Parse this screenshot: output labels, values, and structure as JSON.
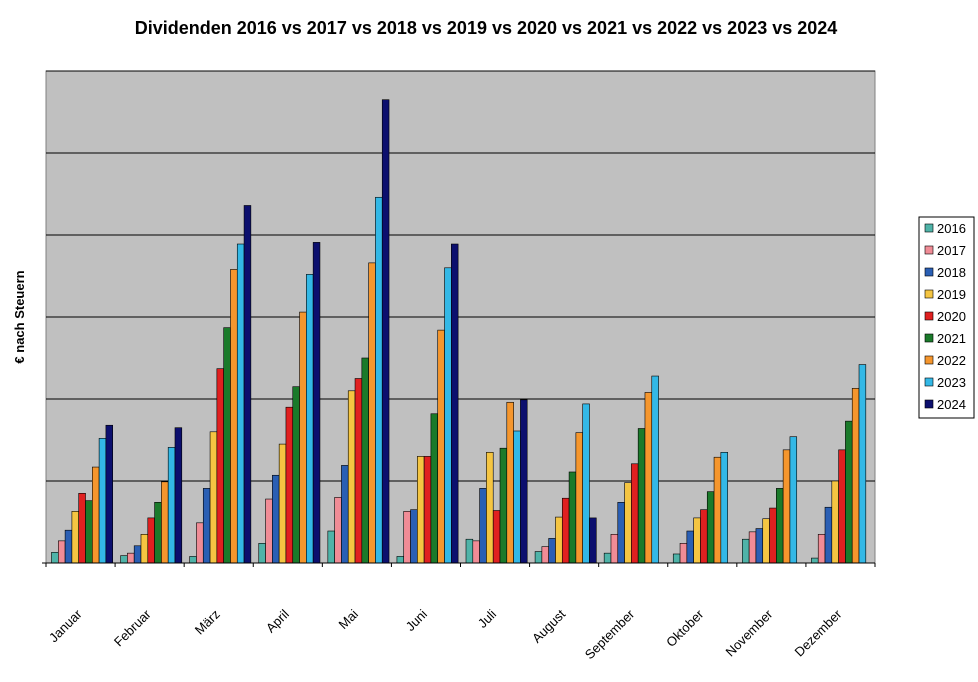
{
  "chart_data": {
    "type": "bar",
    "title": "Dividenden 2016 vs 2017 vs 2018 vs 2019 vs 2020 vs 2021 vs 2022 vs 2023 vs 2024",
    "xlabel": "",
    "ylabel": "€ nach Steuern",
    "ylim": [
      0,
      60
    ],
    "gridlines": [
      10,
      20,
      30,
      40,
      50,
      60
    ],
    "y_tick_labels_shown": false,
    "grid": true,
    "legend_position": "right",
    "plot_background": "#c0c0c0",
    "categories": [
      "Januar",
      "Februar",
      "März",
      "April",
      "Mai",
      "Juni",
      "Juli",
      "August",
      "September",
      "Oktober",
      "November",
      "Dezember"
    ],
    "series": [
      {
        "name": "2016",
        "color": "#4fb3a8",
        "values": [
          1.3,
          0.9,
          0.8,
          2.4,
          3.9,
          0.8,
          2.9,
          1.4,
          1.2,
          1.1,
          2.9,
          0.6
        ]
      },
      {
        "name": "2017",
        "color": "#f08c96",
        "values": [
          2.7,
          1.2,
          4.9,
          7.8,
          8.0,
          6.3,
          2.7,
          2.0,
          3.5,
          2.4,
          3.8,
          3.5
        ]
      },
      {
        "name": "2018",
        "color": "#2a5fb4",
        "values": [
          4.0,
          2.1,
          9.1,
          10.7,
          11.9,
          6.5,
          9.1,
          3.0,
          7.4,
          3.9,
          4.2,
          6.8
        ]
      },
      {
        "name": "2019",
        "color": "#f5c542",
        "values": [
          6.3,
          3.5,
          16.0,
          14.5,
          21.0,
          13.0,
          13.5,
          5.6,
          9.8,
          5.5,
          5.4,
          10.0
        ]
      },
      {
        "name": "2020",
        "color": "#e02020",
        "values": [
          8.5,
          5.5,
          23.7,
          19.0,
          22.5,
          13.0,
          6.4,
          7.9,
          12.1,
          6.5,
          6.7,
          13.8
        ]
      },
      {
        "name": "2021",
        "color": "#1a7a2a",
        "values": [
          7.6,
          7.4,
          28.7,
          21.5,
          25.0,
          18.2,
          14.0,
          11.1,
          16.4,
          8.7,
          9.1,
          17.3
        ]
      },
      {
        "name": "2022",
        "color": "#f5962d",
        "values": [
          11.7,
          9.9,
          35.8,
          30.6,
          36.6,
          28.4,
          19.6,
          15.9,
          20.8,
          12.9,
          13.8,
          21.3
        ]
      },
      {
        "name": "2023",
        "color": "#33b8e6",
        "values": [
          15.2,
          14.1,
          38.9,
          35.2,
          44.6,
          36.0,
          16.1,
          19.4,
          22.8,
          13.5,
          15.4,
          24.2
        ]
      },
      {
        "name": "2024",
        "color": "#0c0f6e",
        "values": [
          16.8,
          16.5,
          43.6,
          39.1,
          56.5,
          38.9,
          19.9,
          5.5,
          null,
          null,
          null,
          null
        ]
      }
    ]
  }
}
